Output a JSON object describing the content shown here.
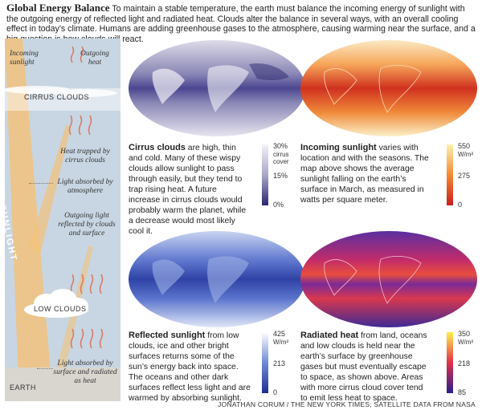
{
  "header": {
    "title": "Global Energy Balance",
    "text": "To maintain a stable temperature, the earth must balance the incoming energy of sunlight with the outgoing energy of reflected light and radiated heat. Clouds alter the balance in several ways, with an overall cooling effect in today’s climate. Humans are adding greenhouse gases to the atmosphere, causing warming near the surface, and a big question is how clouds will react."
  },
  "diagram": {
    "incoming": "Incoming sunlight",
    "outgoing": "Outgoing heat",
    "cirrus": "CIRRUS CLOUDS",
    "trapped": "Heat trapped by cirrus clouds",
    "absorbed_atm": "Light absorbed by atmosphere",
    "reflected": "Outgoing light reflected by clouds and surface",
    "sunlight": "SUNLIGHT",
    "low_clouds": "LOW CLOUDS",
    "absorbed_surface": "Light absorbed by surface and radiated as heat",
    "earth": "EARTH"
  },
  "panels": {
    "cirrus": {
      "title": "Cirrus clouds",
      "text": "are high, thin and cold. Many of these wispy clouds allow sunlight to pass through easily, but they tend to trap rising heat. A future increase in cirrus clouds would probably warm the planet, while a decrease would most likely cool it.",
      "legend": {
        "top": "30%",
        "top_unit": "cirrus cover",
        "mid": "15%",
        "bottom": "0%"
      },
      "colors": [
        "#f4f3f8",
        "#a9a7c8",
        "#2b2870"
      ]
    },
    "incoming": {
      "title": "Incoming sunlight",
      "text": "varies with location and with the seasons. The map above shows the average sunlight falling on the earth’s surface in March, as measured in watts per square meter.",
      "legend": {
        "top": "550",
        "top_unit": "W/m²",
        "mid": "275",
        "bottom": "0"
      },
      "colors": [
        "#fdf3b0",
        "#f38a2f",
        "#c81e1e"
      ]
    },
    "reflected": {
      "title": "Reflected sunlight",
      "text": "from low clouds, ice and other bright surfaces returns some of the sun’s energy back into space. The oceans and other dark surfaces reflect less light and are warmed by absorbing sunlight.",
      "legend": {
        "top": "425",
        "top_unit": "W/m²",
        "mid": "213",
        "bottom": "0"
      },
      "colors": [
        "#ffffff",
        "#6e8bd6",
        "#1f2e8f"
      ]
    },
    "radiated": {
      "title": "Radiated heat",
      "text": "from land, oceans and low clouds is held near the earth’s surface by greenhouse gases but must eventually escape to space, as shown above. Areas with more cirrus cloud cover tend to emit less heat to space.",
      "legend": {
        "top": "350",
        "top_unit": "W/m²",
        "mid": "218",
        "bottom": "85"
      },
      "colors": [
        "#fff04a",
        "#e0304a",
        "#2a1f8c"
      ]
    }
  },
  "credit": "JONATHAN CORUM / THE NEW YORK TIMES; SATELLITE DATA FROM NASA"
}
